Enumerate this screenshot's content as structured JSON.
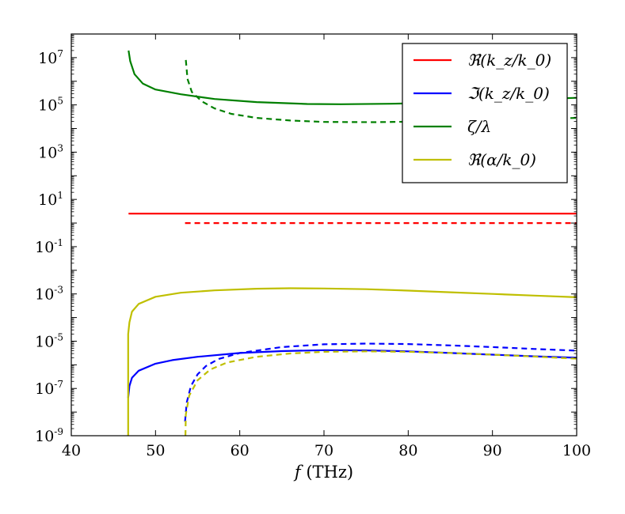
{
  "chart_data": {
    "type": "line",
    "yscale": "log",
    "xlim": [
      40,
      100
    ],
    "ylim_log10": [
      -9,
      8
    ],
    "x_ticks": [
      40,
      50,
      60,
      70,
      80,
      90,
      100
    ],
    "x_tick_labels": [
      "40",
      "50",
      "60",
      "70",
      "80",
      "90",
      "100"
    ],
    "y_ticks_log10": [
      -9,
      -7,
      -5,
      -3,
      -1,
      1,
      3,
      5,
      7
    ],
    "y_tick_labels": [
      {
        "base": "10",
        "exp": "-9"
      },
      {
        "base": "10",
        "exp": "-7"
      },
      {
        "base": "10",
        "exp": "-5"
      },
      {
        "base": "10",
        "exp": "-3"
      },
      {
        "base": "10",
        "exp": "-1"
      },
      {
        "base": "10",
        "exp": "1"
      },
      {
        "base": "10",
        "exp": "3"
      },
      {
        "base": "10",
        "exp": "5"
      },
      {
        "base": "10",
        "exp": "7"
      }
    ],
    "xlabel": {
      "var": "f",
      "unit": " (THz)"
    },
    "legend_position": "top-right",
    "legend": [
      {
        "label": "ℜ(k_z/k_0)",
        "color": "#ff0000"
      },
      {
        "label": "ℑ(k_z/k_0)",
        "color": "#0000ff"
      },
      {
        "label": "ζ/λ",
        "color": "#008000"
      },
      {
        "label": "ℜ(α/k_0)",
        "color": "#bfbf00"
      }
    ],
    "series": [
      {
        "name": "Re(kz/k0) solid",
        "color": "#ff0000",
        "dashed": false,
        "points": [
          [
            46.8,
            0.4
          ],
          [
            100,
            0.4
          ]
        ]
      },
      {
        "name": "Re(kz/k0) dashed",
        "color": "#ff0000",
        "dashed": true,
        "points": [
          [
            53.5,
            0.0
          ],
          [
            100,
            0.0
          ]
        ]
      },
      {
        "name": "Im(kz/k0) solid",
        "color": "#0000ff",
        "dashed": false,
        "points": [
          [
            46.75,
            -7.4
          ],
          [
            46.9,
            -6.9
          ],
          [
            47.2,
            -6.55
          ],
          [
            48,
            -6.25
          ],
          [
            50,
            -5.95
          ],
          [
            52,
            -5.8
          ],
          [
            55,
            -5.66
          ],
          [
            60,
            -5.5
          ],
          [
            65,
            -5.42
          ],
          [
            70,
            -5.38
          ],
          [
            75,
            -5.39
          ],
          [
            80,
            -5.43
          ],
          [
            85,
            -5.5
          ],
          [
            90,
            -5.57
          ],
          [
            95,
            -5.64
          ],
          [
            100,
            -5.7
          ]
        ]
      },
      {
        "name": "Im(kz/k0) dashed",
        "color": "#0000ff",
        "dashed": true,
        "points": [
          [
            53.5,
            -8.4
          ],
          [
            53.7,
            -7.6
          ],
          [
            54.2,
            -6.9
          ],
          [
            55,
            -6.4
          ],
          [
            56,
            -6.05
          ],
          [
            57.5,
            -5.75
          ],
          [
            60,
            -5.5
          ],
          [
            65,
            -5.25
          ],
          [
            70,
            -5.13
          ],
          [
            75,
            -5.1
          ],
          [
            80,
            -5.12
          ],
          [
            85,
            -5.18
          ],
          [
            90,
            -5.25
          ],
          [
            95,
            -5.33
          ],
          [
            100,
            -5.4
          ]
        ]
      },
      {
        "name": "zeta/lambda solid",
        "color": "#008000",
        "dashed": false,
        "points": [
          [
            46.8,
            7.3
          ],
          [
            47.0,
            6.85
          ],
          [
            47.5,
            6.3
          ],
          [
            48.5,
            5.9
          ],
          [
            50,
            5.65
          ],
          [
            53,
            5.45
          ],
          [
            57,
            5.25
          ],
          [
            62,
            5.12
          ],
          [
            68,
            5.04
          ],
          [
            72,
            5.03
          ],
          [
            78,
            5.05
          ],
          [
            84,
            5.1
          ],
          [
            90,
            5.17
          ],
          [
            95,
            5.24
          ],
          [
            100,
            5.3
          ]
        ]
      },
      {
        "name": "zeta/lambda dashed",
        "color": "#008000",
        "dashed": true,
        "points": [
          [
            53.6,
            6.9
          ],
          [
            53.8,
            6.1
          ],
          [
            54.3,
            5.55
          ],
          [
            55.5,
            5.15
          ],
          [
            57,
            4.85
          ],
          [
            59,
            4.62
          ],
          [
            62,
            4.45
          ],
          [
            66,
            4.34
          ],
          [
            70,
            4.28
          ],
          [
            76,
            4.27
          ],
          [
            82,
            4.3
          ],
          [
            88,
            4.35
          ],
          [
            94,
            4.4
          ],
          [
            100,
            4.45
          ]
        ]
      },
      {
        "name": "Re(alpha/k0) solid",
        "color": "#bfbf00",
        "dashed": false,
        "points": [
          [
            46.75,
            -9.0
          ],
          [
            46.75,
            -4.7
          ],
          [
            46.9,
            -4.2
          ],
          [
            47.2,
            -3.75
          ],
          [
            48,
            -3.42
          ],
          [
            50,
            -3.12
          ],
          [
            53,
            -2.95
          ],
          [
            57,
            -2.85
          ],
          [
            62,
            -2.78
          ],
          [
            66,
            -2.76
          ],
          [
            70,
            -2.77
          ],
          [
            75,
            -2.8
          ],
          [
            80,
            -2.86
          ],
          [
            85,
            -2.93
          ],
          [
            90,
            -3.0
          ],
          [
            95,
            -3.07
          ],
          [
            100,
            -3.14
          ]
        ]
      },
      {
        "name": "Re(alpha/k0) dashed",
        "color": "#bfbf00",
        "dashed": true,
        "points": [
          [
            53.55,
            -9.0
          ],
          [
            53.6,
            -8.1
          ],
          [
            54.0,
            -7.3
          ],
          [
            55,
            -6.65
          ],
          [
            56.5,
            -6.2
          ],
          [
            58.5,
            -5.9
          ],
          [
            62,
            -5.66
          ],
          [
            66,
            -5.52
          ],
          [
            70,
            -5.45
          ],
          [
            75,
            -5.43
          ],
          [
            80,
            -5.45
          ],
          [
            85,
            -5.5
          ],
          [
            90,
            -5.57
          ],
          [
            95,
            -5.65
          ],
          [
            100,
            -5.74
          ]
        ]
      }
    ]
  }
}
